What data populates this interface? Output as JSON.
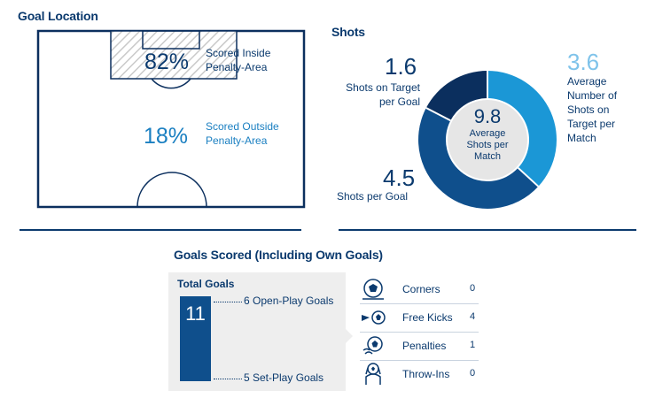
{
  "goal_location": {
    "title": "Goal Location",
    "inside": {
      "percent": "82%",
      "label_line1": "Scored Inside",
      "label_line2": "Penalty-Area"
    },
    "outside": {
      "percent": "18%",
      "label_line1": "Scored Outside",
      "label_line2": "Penalty-Area"
    }
  },
  "shots": {
    "title": "Shots",
    "on_target_per_goal": {
      "value": "1.6",
      "line1": "Shots on Target",
      "line2": "per Goal"
    },
    "per_goal": {
      "value": "4.5",
      "label": "Shots per Goal"
    },
    "avg_on_target": {
      "value": "3.6",
      "line1": "Average",
      "line2": "Number of",
      "line3": "Shots on",
      "line4": "Target per",
      "line5": "Match"
    },
    "center": {
      "value": "9.8",
      "line1": "Average",
      "line2": "Shots per",
      "line3": "Match"
    },
    "colors": {
      "on_target": "#1b97d6",
      "off_target": "#0f4f8c",
      "dark": "#0b2f5e"
    }
  },
  "goals_scored": {
    "title": "Goals Scored (Including Own Goals)",
    "total_label": "Total Goals",
    "total": "11",
    "open_play": "6 Open-Play Goals",
    "set_play": "5 Set-Play Goals",
    "set_pieces": [
      {
        "name": "Corners",
        "value": "0",
        "icon": "corner-flag-icon"
      },
      {
        "name": "Free Kicks",
        "value": "4",
        "icon": "free-kick-icon"
      },
      {
        "name": "Penalties",
        "value": "1",
        "icon": "penalty-icon"
      },
      {
        "name": "Throw-Ins",
        "value": "0",
        "icon": "throw-in-icon"
      }
    ]
  }
}
